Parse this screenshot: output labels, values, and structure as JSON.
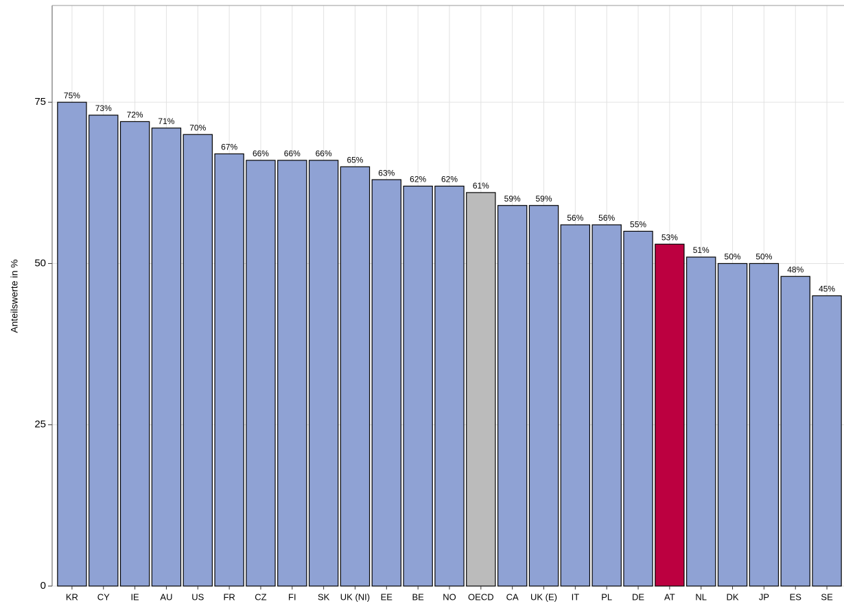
{
  "chart_data": {
    "type": "bar",
    "y_label": "Anteilswerte in %",
    "categories": [
      "KR",
      "CY",
      "IE",
      "AU",
      "US",
      "FR",
      "CZ",
      "FI",
      "SK",
      "UK (NI)",
      "EE",
      "BE",
      "NO",
      "OECD",
      "CA",
      "UK (E)",
      "IT",
      "PL",
      "DE",
      "AT",
      "NL",
      "DK",
      "JP",
      "ES",
      "SE"
    ],
    "values": [
      75,
      73,
      72,
      71,
      70,
      67,
      66,
      66,
      66,
      65,
      63,
      62,
      62,
      61,
      59,
      59,
      56,
      56,
      55,
      53,
      51,
      50,
      50,
      48,
      45
    ],
    "value_labels": [
      "75%",
      "73%",
      "72%",
      "71%",
      "70%",
      "67%",
      "66%",
      "66%",
      "66%",
      "65%",
      "63%",
      "62%",
      "62%",
      "61%",
      "59%",
      "59%",
      "56%",
      "56%",
      "55%",
      "53%",
      "51%",
      "50%",
      "50%",
      "48%",
      "45%"
    ],
    "colors": [
      "#8fa2d4",
      "#8fa2d4",
      "#8fa2d4",
      "#8fa2d4",
      "#8fa2d4",
      "#8fa2d4",
      "#8fa2d4",
      "#8fa2d4",
      "#8fa2d4",
      "#8fa2d4",
      "#8fa2d4",
      "#8fa2d4",
      "#8fa2d4",
      "#bbbbbb",
      "#8fa2d4",
      "#8fa2d4",
      "#8fa2d4",
      "#8fa2d4",
      "#8fa2d4",
      "#bc0040",
      "#8fa2d4",
      "#8fa2d4",
      "#8fa2d4",
      "#8fa2d4",
      "#8fa2d4"
    ],
    "ylim": [
      0,
      90
    ],
    "yticks": [
      0,
      25,
      50,
      75
    ],
    "grid": true
  }
}
